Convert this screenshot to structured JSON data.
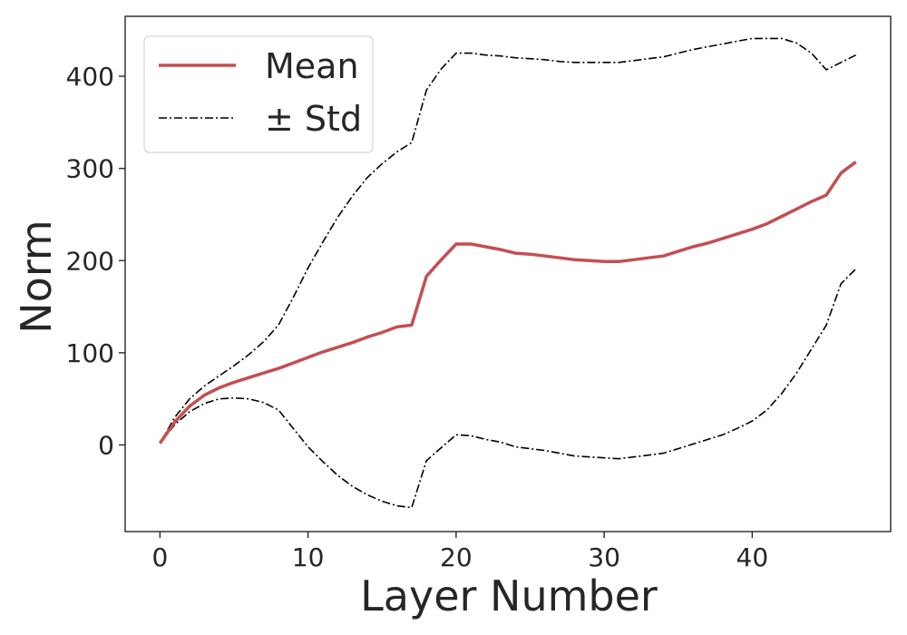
{
  "chart_data": {
    "type": "line",
    "title": "",
    "xlabel": "Layer Number",
    "ylabel": "Norm",
    "xlim": [
      -2.35,
      49.35
    ],
    "ylim": [
      -94,
      465
    ],
    "xticks": [
      0,
      10,
      20,
      30,
      40
    ],
    "yticks": [
      0,
      100,
      200,
      300,
      400
    ],
    "grid": false,
    "legend_position": "top-left",
    "legend": [
      {
        "label": "Mean",
        "style": "solid",
        "color": "#c44e52"
      },
      {
        "label": "± Std",
        "style": "dashdot",
        "color": "#000000"
      }
    ],
    "x": [
      0,
      1,
      2,
      3,
      4,
      5,
      6,
      7,
      8,
      9,
      10,
      11,
      12,
      13,
      14,
      15,
      16,
      17,
      18,
      19,
      20,
      21,
      22,
      23,
      24,
      25,
      26,
      27,
      28,
      29,
      30,
      31,
      32,
      33,
      34,
      35,
      36,
      37,
      38,
      39,
      40,
      41,
      42,
      43,
      44,
      45,
      46,
      47
    ],
    "series": [
      {
        "name": "Mean",
        "style": "solid",
        "color": "#c44e52",
        "values": [
          2,
          25,
          42,
          54,
          62,
          68,
          73,
          78,
          83,
          89,
          95,
          101,
          106,
          111,
          117,
          122,
          128,
          130,
          183,
          201,
          218,
          218,
          215,
          212,
          208,
          207,
          205,
          203,
          201,
          200,
          199,
          199,
          201,
          203,
          205,
          210,
          215,
          219,
          224,
          229,
          234,
          240,
          248,
          256,
          264,
          271,
          295,
          307
        ]
      },
      {
        "name": "Mean + Std",
        "style": "dashdot",
        "color": "#000000",
        "values": [
          2,
          30,
          50,
          64,
          75,
          86,
          98,
          112,
          130,
          160,
          192,
          220,
          247,
          270,
          290,
          305,
          318,
          328,
          385,
          408,
          425,
          425,
          423,
          422,
          420,
          419,
          418,
          416,
          415,
          415,
          415,
          415,
          417,
          419,
          421,
          425,
          429,
          432,
          435,
          438,
          441,
          441,
          441,
          436,
          425,
          407,
          415,
          423
        ]
      },
      {
        "name": "Mean - Std",
        "style": "dashdot",
        "color": "#000000",
        "values": [
          2,
          22,
          36,
          45,
          50,
          51,
          50,
          46,
          38,
          18,
          -2,
          -18,
          -33,
          -45,
          -54,
          -61,
          -66,
          -68,
          -17,
          -3,
          11,
          10,
          6,
          3,
          -2,
          -4,
          -6,
          -9,
          -12,
          -13,
          -14,
          -15,
          -13,
          -11,
          -9,
          -4,
          1,
          6,
          11,
          18,
          26,
          38,
          56,
          78,
          104,
          130,
          175,
          191
        ]
      }
    ]
  }
}
